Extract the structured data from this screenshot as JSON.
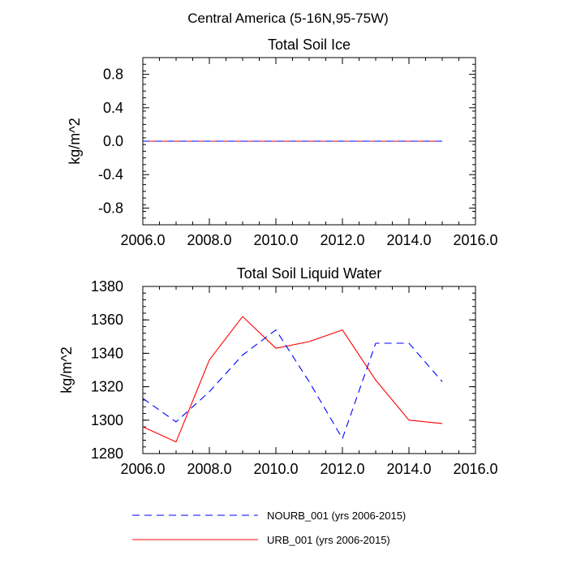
{
  "figure_title": "Central America (5-16N,95-75W)",
  "chart_data": [
    {
      "type": "line",
      "title": "Total Soil Ice",
      "xlabel": "",
      "ylabel": "kg/m^2",
      "xlim": [
        2006,
        2016
      ],
      "ylim": [
        -1.0,
        1.0
      ],
      "xticks": [
        2006,
        2008,
        2010,
        2012,
        2014,
        2016
      ],
      "xtick_labels": [
        "2006.0",
        "2008.0",
        "2010.0",
        "2012.0",
        "2014.0",
        "2016.0"
      ],
      "yticks": [
        -0.8,
        -0.4,
        0.0,
        0.4,
        0.8
      ],
      "ytick_labels": [
        "-0.8",
        "-0.4",
        "0.0",
        "0.4",
        "0.8"
      ],
      "x": [
        2006,
        2007,
        2008,
        2009,
        2010,
        2011,
        2012,
        2013,
        2014,
        2015
      ],
      "series": [
        {
          "name": "URB_001",
          "color": "#ff0000",
          "style": "solid",
          "values": [
            0,
            0,
            0,
            0,
            0,
            0,
            0,
            0,
            0,
            0
          ]
        },
        {
          "name": "NOURB_001",
          "color": "#0000ff",
          "style": "dashed",
          "values": [
            0,
            0,
            0,
            0,
            0,
            0,
            0,
            0,
            0,
            0
          ]
        }
      ]
    },
    {
      "type": "line",
      "title": "Total Soil Liquid Water",
      "xlabel": "",
      "ylabel": "kg/m^2",
      "xlim": [
        2006,
        2016
      ],
      "ylim": [
        1280,
        1380
      ],
      "xticks": [
        2006,
        2008,
        2010,
        2012,
        2014,
        2016
      ],
      "xtick_labels": [
        "2006.0",
        "2008.0",
        "2010.0",
        "2012.0",
        "2014.0",
        "2016.0"
      ],
      "yticks": [
        1280,
        1300,
        1320,
        1340,
        1360,
        1380
      ],
      "ytick_labels": [
        "1280",
        "1300",
        "1320",
        "1340",
        "1360",
        "1380"
      ],
      "x": [
        2006,
        2007,
        2008,
        2009,
        2010,
        2011,
        2012,
        2013,
        2014,
        2015
      ],
      "series": [
        {
          "name": "URB_001",
          "color": "#ff0000",
          "style": "solid",
          "values": [
            1296,
            1287,
            1336,
            1362,
            1343,
            1347,
            1354,
            1324,
            1300,
            1298
          ]
        },
        {
          "name": "NOURB_001",
          "color": "#0000ff",
          "style": "dashed",
          "values": [
            1313,
            1299,
            1317,
            1339,
            1354,
            1323,
            1289,
            1346,
            1346,
            1323
          ]
        }
      ]
    }
  ],
  "legend": {
    "items": [
      {
        "label": "NOURB_001 (yrs 2006-2015)",
        "color": "#0000ff",
        "style": "dashed"
      },
      {
        "label": "URB_001 (yrs 2006-2015)",
        "color": "#ff0000",
        "style": "solid"
      }
    ]
  }
}
